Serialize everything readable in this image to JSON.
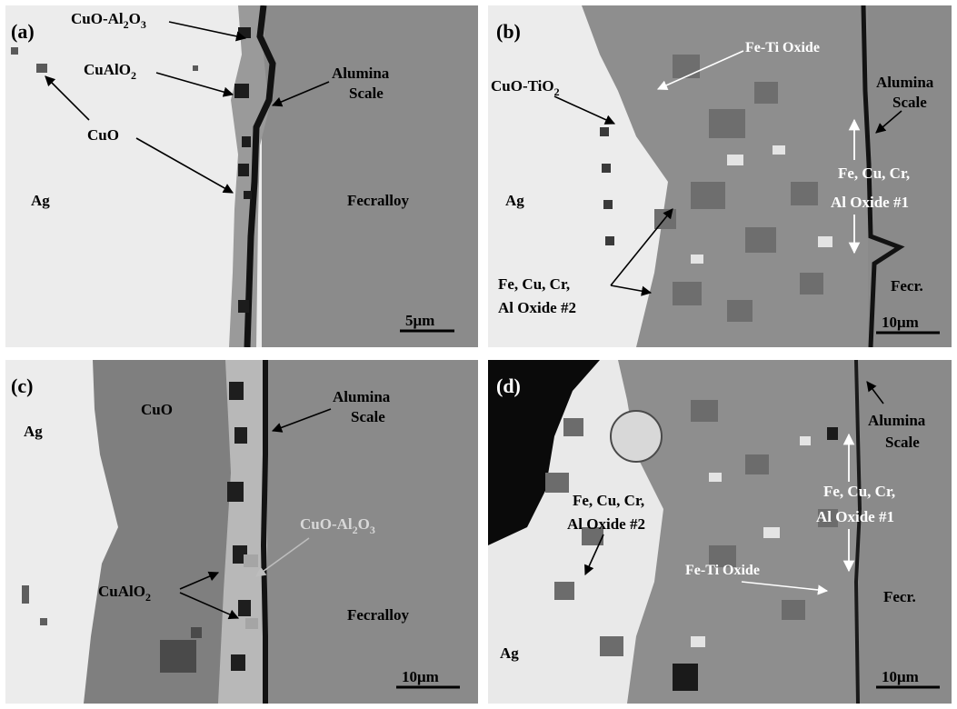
{
  "panels": [
    {
      "id": "a",
      "letter": "(a)",
      "labels": {
        "silver": "Ag",
        "cuo_al2o3_prefix": "CuO-Al",
        "cuo_al2o3_sub1": "2",
        "cuo_al2o3_mid": "O",
        "cuo_al2o3_sub2": "3",
        "cualo2_prefix": "CuAlO",
        "cualo2_sub": "2",
        "cuo": "CuO",
        "alumina_line1": "Alumina",
        "alumina_line2": "Scale",
        "fecralloy": "Fecralloy"
      },
      "scale_bar": "5μm"
    },
    {
      "id": "b",
      "letter": "(b)",
      "labels": {
        "silver": "Ag",
        "fe_ti_oxide": "Fe-Ti Oxide",
        "cuo_tio2_prefix": "CuO-TiO",
        "cuo_tio2_sub": "2",
        "alumina_line1": "Alumina",
        "alumina_line2": "Scale",
        "oxide1_line1": "Fe, Cu, Cr,",
        "oxide1_line2": "Al Oxide #1",
        "oxide2_line1": "Fe, Cu, Cr,",
        "oxide2_line2": "Al Oxide #2",
        "fecr": "Fecr."
      },
      "scale_bar": "10μm"
    },
    {
      "id": "c",
      "letter": "(c)",
      "labels": {
        "silver": "Ag",
        "cuo": "CuO",
        "alumina_line1": "Alumina",
        "alumina_line2": "Scale",
        "cuo_al2o3_prefix": "CuO-Al",
        "cuo_al2o3_sub1": "2",
        "cuo_al2o3_mid": "O",
        "cuo_al2o3_sub2": "3",
        "cualo2_prefix": "CuAlO",
        "cualo2_sub": "2",
        "fecralloy": "Fecralloy"
      },
      "scale_bar": "10μm"
    },
    {
      "id": "d",
      "letter": "(d)",
      "labels": {
        "silver": "Ag",
        "alumina_line1": "Alumina",
        "alumina_line2": "Scale",
        "oxide2_line1": "Fe, Cu, Cr,",
        "oxide2_line2": "Al Oxide #2",
        "oxide1_line1": "Fe, Cu, Cr,",
        "oxide1_line2": "Al Oxide #1",
        "fe_ti_oxide": "Fe-Ti Oxide",
        "fecr": "Fecr."
      },
      "scale_bar": "10μm"
    }
  ],
  "colors": {
    "silver_phase": "#ececec",
    "fecralloy_phase": "#8a8a8a",
    "cuo_phase": "#7f7f7f",
    "oxide_matrix": "#8e8e8e",
    "oxide_grain": "#6e6e6e",
    "scale_dark": "#121212",
    "label_black": "#000000",
    "label_white": "#ffffff"
  }
}
